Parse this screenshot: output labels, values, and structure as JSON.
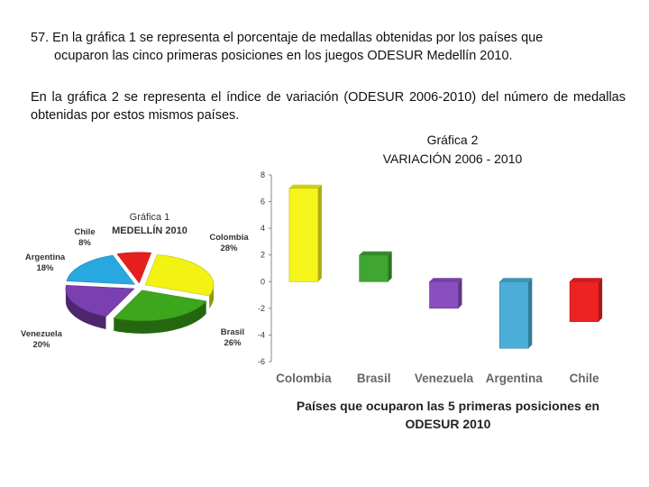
{
  "question": {
    "line1": "57. En la gráfica 1 se representa el porcentaje de medallas obtenidas por los países que",
    "line2": "ocuparon las cinco primeras posiciones en los juegos ODESUR Medellín 2010.",
    "paragraph2": "En la gráfica 2 se representa el índice de variación (ODESUR 2006-2010) del número de medallas obtenidas por estos mismos países."
  },
  "chart_data": [
    {
      "type": "pie",
      "title": "Gráfica 1",
      "subtitle": "MEDELLÍN 2010",
      "categories": [
        "Colombia",
        "Brasil",
        "Venezuela",
        "Argentina",
        "Chile"
      ],
      "labels": [
        "28%",
        "26%",
        "20%",
        "18%",
        "8%"
      ],
      "values": [
        28,
        26,
        20,
        18,
        8
      ],
      "colors": [
        "#f2f213",
        "#3ca61c",
        "#7a3fb0",
        "#27a9df",
        "#e61e1e"
      ],
      "style": "3d-exploded"
    },
    {
      "type": "bar",
      "title": "Gráfica 2",
      "subtitle": "VARIACIÓN 2006 - 2010",
      "categories": [
        "Colombia",
        "Brasil",
        "Venezuela",
        "Argentina",
        "Chile"
      ],
      "values": [
        7,
        2,
        -2,
        -5,
        -3
      ],
      "colors": [
        "#f5f51c",
        "#3ea631",
        "#8a4fbf",
        "#4aaed6",
        "#ee2222"
      ],
      "ylim": [
        -6,
        8
      ],
      "yticks": [
        8,
        6,
        4,
        2,
        0,
        -2,
        -4,
        -6
      ],
      "xlabel": "Países que ocuparon las 5 primeras posiciones en ODESUR 2010",
      "grid": false
    }
  ]
}
